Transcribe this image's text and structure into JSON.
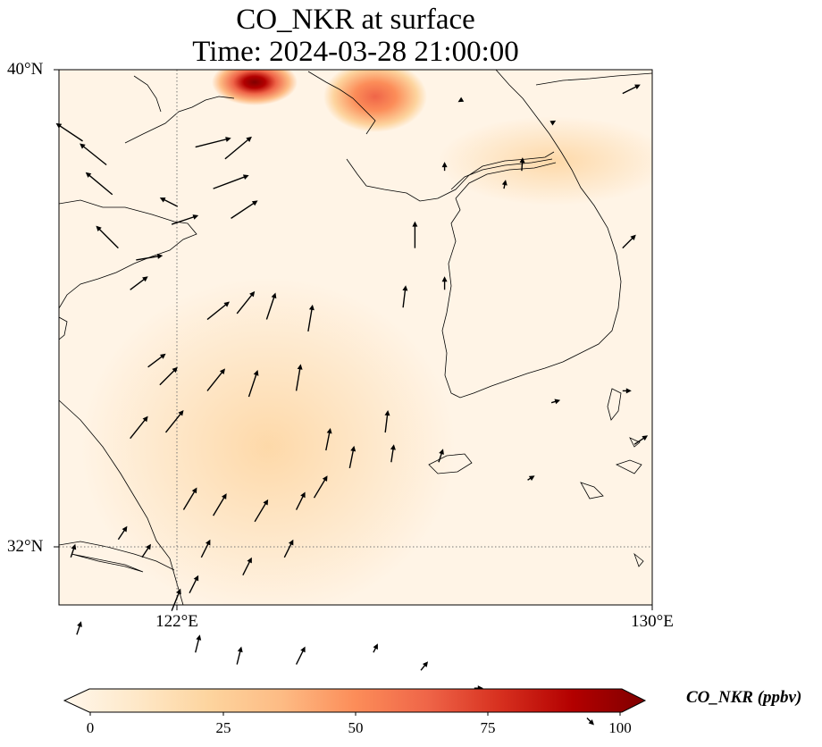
{
  "title": {
    "line1": "CO_NKR at surface",
    "line2": "Time: 2024-03-28 21:00:00"
  },
  "map": {
    "lat_labels": [
      "40°N",
      "32°N"
    ],
    "lon_labels": [
      "122°E",
      "130°E"
    ],
    "extent": {
      "lon_min": 120,
      "lon_max": 130,
      "lat_min": 31,
      "lat_max": 40
    },
    "gridlines": {
      "lons": [
        122
      ],
      "lats": [
        32
      ],
      "style": "dotted"
    },
    "colormap": "OrRd"
  },
  "colorbar": {
    "label": "CO_NKR (ppbv)",
    "ticks": [
      "0",
      "25",
      "50",
      "75",
      "100"
    ],
    "range": [
      0,
      100
    ],
    "extend": "both",
    "stops": [
      "#fff7ec",
      "#fee8c8",
      "#fdd49e",
      "#fdbb84",
      "#fc8d59",
      "#ef6548",
      "#d7301f",
      "#b30000",
      "#7f0000"
    ]
  },
  "wind_vectors": [
    {
      "lon": 120.4,
      "lat": 38.8,
      "u": -3,
      "v": 2
    },
    {
      "lon": 120.8,
      "lat": 38.4,
      "u": -3,
      "v": 2.4
    },
    {
      "lon": 120.9,
      "lat": 37.9,
      "u": -3,
      "v": 2.5
    },
    {
      "lon": 121.0,
      "lat": 37.0,
      "u": -2.5,
      "v": 2.5
    },
    {
      "lon": 121.3,
      "lat": 36.8,
      "u": 3,
      "v": 0.5
    },
    {
      "lon": 121.9,
      "lat": 37.4,
      "u": 3,
      "v": 1
    },
    {
      "lon": 122.3,
      "lat": 38.7,
      "u": 4,
      "v": 1
    },
    {
      "lon": 122.8,
      "lat": 38.5,
      "u": 3,
      "v": 2.5
    },
    {
      "lon": 122.6,
      "lat": 38.0,
      "u": 4,
      "v": 1.5
    },
    {
      "lon": 122.9,
      "lat": 37.5,
      "u": 3,
      "v": 2
    },
    {
      "lon": 122.0,
      "lat": 37.7,
      "u": -2,
      "v": 1
    },
    {
      "lon": 121.2,
      "lat": 36.3,
      "u": 2,
      "v": 1.5
    },
    {
      "lon": 122.5,
      "lat": 35.8,
      "u": 2.5,
      "v": 2
    },
    {
      "lon": 123.0,
      "lat": 35.9,
      "u": 2,
      "v": 2.5
    },
    {
      "lon": 123.5,
      "lat": 35.8,
      "u": 1,
      "v": 3
    },
    {
      "lon": 124.2,
      "lat": 35.6,
      "u": 0.5,
      "v": 3
    },
    {
      "lon": 121.5,
      "lat": 35.0,
      "u": 2,
      "v": 1.5
    },
    {
      "lon": 121.7,
      "lat": 34.7,
      "u": 2,
      "v": 2
    },
    {
      "lon": 122.5,
      "lat": 34.6,
      "u": 2,
      "v": 2.5
    },
    {
      "lon": 123.2,
      "lat": 34.5,
      "u": 1,
      "v": 3
    },
    {
      "lon": 124.0,
      "lat": 34.6,
      "u": 0.5,
      "v": 3
    },
    {
      "lon": 121.2,
      "lat": 33.8,
      "u": 2,
      "v": 2.5
    },
    {
      "lon": 121.8,
      "lat": 33.9,
      "u": 2,
      "v": 2.5
    },
    {
      "lon": 124.5,
      "lat": 33.6,
      "u": 0.5,
      "v": 2.5
    },
    {
      "lon": 124.9,
      "lat": 33.3,
      "u": 0.5,
      "v": 2.5
    },
    {
      "lon": 125.5,
      "lat": 33.9,
      "u": 0.3,
      "v": 2.5
    },
    {
      "lon": 125.6,
      "lat": 33.4,
      "u": 0.3,
      "v": 2
    },
    {
      "lon": 126.4,
      "lat": 33.4,
      "u": 0.5,
      "v": 1.5
    },
    {
      "lon": 126.0,
      "lat": 37.0,
      "u": 0,
      "v": 3
    },
    {
      "lon": 125.8,
      "lat": 36.0,
      "u": 0.3,
      "v": 2.5
    },
    {
      "lon": 126.5,
      "lat": 36.3,
      "u": 0,
      "v": 1.5
    },
    {
      "lon": 122.1,
      "lat": 32.6,
      "u": 1.5,
      "v": 2.5
    },
    {
      "lon": 122.6,
      "lat": 32.5,
      "u": 1.5,
      "v": 2.5
    },
    {
      "lon": 123.3,
      "lat": 32.4,
      "u": 1.5,
      "v": 2.5
    },
    {
      "lon": 124.0,
      "lat": 32.6,
      "u": 1,
      "v": 2
    },
    {
      "lon": 124.3,
      "lat": 32.8,
      "u": 1.5,
      "v": 2.5
    },
    {
      "lon": 121.0,
      "lat": 32.1,
      "u": 1,
      "v": 1.5
    },
    {
      "lon": 121.4,
      "lat": 31.8,
      "u": 1,
      "v": 1.5
    },
    {
      "lon": 122.4,
      "lat": 31.8,
      "u": 1,
      "v": 2
    },
    {
      "lon": 123.1,
      "lat": 31.5,
      "u": 1,
      "v": 2
    },
    {
      "lon": 122.2,
      "lat": 31.2,
      "u": 1,
      "v": 2
    },
    {
      "lon": 121.9,
      "lat": 30.9,
      "u": 1,
      "v": 2.5
    },
    {
      "lon": 123.8,
      "lat": 31.8,
      "u": 1,
      "v": 2
    },
    {
      "lon": 120.2,
      "lat": 31.8,
      "u": 0.5,
      "v": 1.5
    },
    {
      "lon": 120.3,
      "lat": 30.5,
      "u": 0.5,
      "v": 1.5
    },
    {
      "lon": 122.3,
      "lat": 30.2,
      "u": 0.5,
      "v": 2
    },
    {
      "lon": 123.0,
      "lat": 30.0,
      "u": 0.5,
      "v": 2
    },
    {
      "lon": 124.0,
      "lat": 30.0,
      "u": 1,
      "v": 2
    },
    {
      "lon": 125.3,
      "lat": 30.2,
      "u": 0.5,
      "v": 1
    },
    {
      "lon": 126.1,
      "lat": 29.9,
      "u": 0.8,
      "v": 1
    },
    {
      "lon": 127.0,
      "lat": 29.6,
      "u": 1,
      "v": 0
    },
    {
      "lon": 128.9,
      "lat": 29.1,
      "u": 0.8,
      "v": -0.8
    },
    {
      "lon": 128.2,
      "lat": 29.4,
      "u": 0.5,
      "v": -0.5
    },
    {
      "lon": 127.9,
      "lat": 33.1,
      "u": 0.8,
      "v": 0.5
    },
    {
      "lon": 129.7,
      "lat": 33.7,
      "u": 1.5,
      "v": 1
    },
    {
      "lon": 128.3,
      "lat": 34.4,
      "u": 1,
      "v": 0.3
    },
    {
      "lon": 129.5,
      "lat": 34.6,
      "u": 1,
      "v": 0
    },
    {
      "lon": 129.5,
      "lat": 37.0,
      "u": 1.5,
      "v": 1.5
    },
    {
      "lon": 129.5,
      "lat": 39.6,
      "u": 2,
      "v": 1
    },
    {
      "lon": 128.3,
      "lat": 39.1,
      "u": 0.5,
      "v": 0.3
    },
    {
      "lon": 127.5,
      "lat": 38.0,
      "u": 0.2,
      "v": 1
    },
    {
      "lon": 127.8,
      "lat": 38.3,
      "u": 0.1,
      "v": 1.5
    },
    {
      "lon": 126.5,
      "lat": 38.3,
      "u": 0,
      "v": 1
    },
    {
      "lon": 126.8,
      "lat": 39.5,
      "u": -0.5,
      "v": -0.3
    }
  ]
}
